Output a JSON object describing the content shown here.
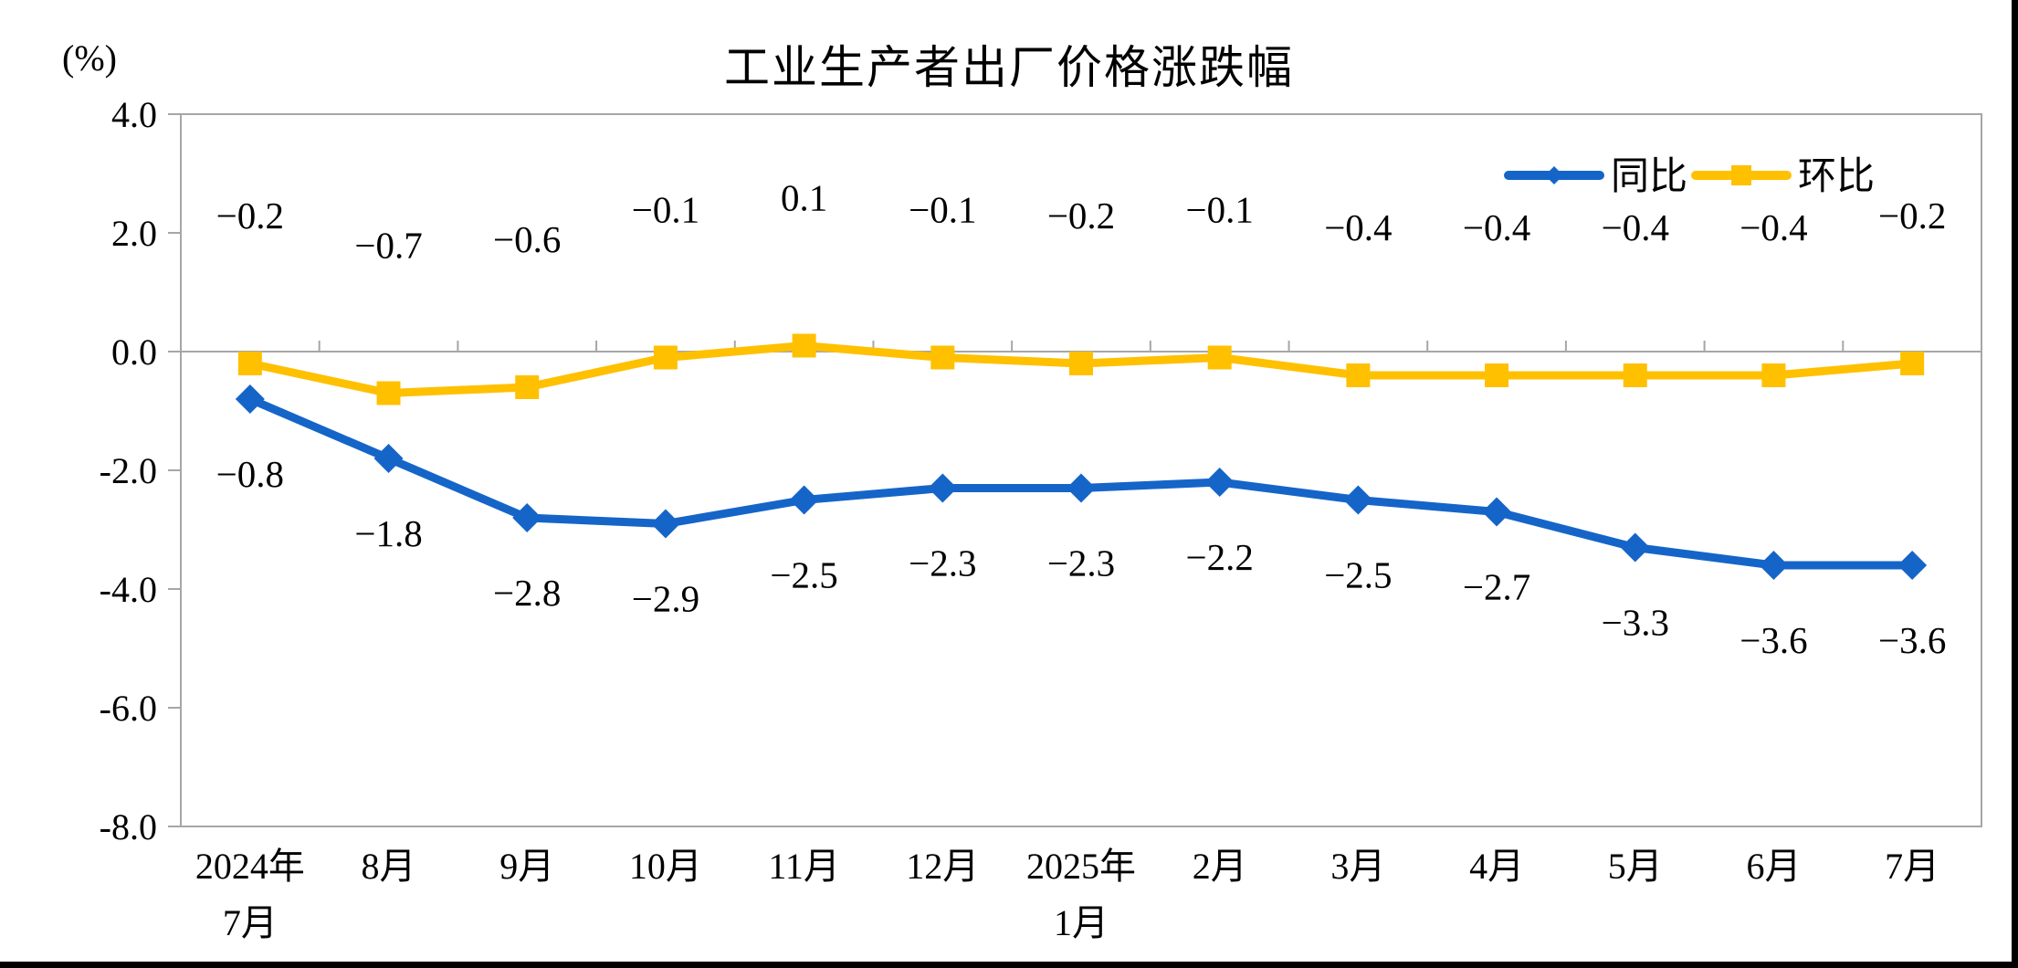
{
  "chart_data": {
    "type": "line",
    "title": "工业生产者出厂价格涨跌幅",
    "unit_label": "(%)",
    "categories": [
      [
        "2024年",
        "7月"
      ],
      [
        "8月"
      ],
      [
        "9月"
      ],
      [
        "10月"
      ],
      [
        "11月"
      ],
      [
        "12月"
      ],
      [
        "2025年",
        "1月"
      ],
      [
        "2月"
      ],
      [
        "3月"
      ],
      [
        "4月"
      ],
      [
        "5月"
      ],
      [
        "6月"
      ],
      [
        "7月"
      ]
    ],
    "series": [
      {
        "name": "同比",
        "marker": "diamond",
        "color": "#1565C8",
        "label_position": "below",
        "values": [
          -0.8,
          -1.8,
          -2.8,
          -2.9,
          -2.5,
          -2.3,
          -2.3,
          -2.2,
          -2.5,
          -2.7,
          -3.3,
          -3.6,
          -3.6
        ],
        "labels": [
          "−0.8",
          "−1.8",
          "−2.8",
          "−2.9",
          "−2.5",
          "−2.3",
          "−2.3",
          "−2.2",
          "−2.5",
          "−2.7",
          "−3.3",
          "−3.6",
          "−3.6"
        ]
      },
      {
        "name": "环比",
        "marker": "square",
        "color": "#FFC000",
        "label_position": "above",
        "values": [
          -0.2,
          -0.7,
          -0.6,
          -0.1,
          0.1,
          -0.1,
          -0.2,
          -0.1,
          -0.4,
          -0.4,
          -0.4,
          -0.4,
          -0.2
        ],
        "labels": [
          "−0.2",
          "−0.7",
          "−0.6",
          "−0.1",
          "0.1",
          "−0.1",
          "−0.2",
          "−0.1",
          "−0.4",
          "−0.4",
          "−0.4",
          "−0.4",
          "−0.2"
        ]
      }
    ],
    "y_axis": {
      "min": -8.0,
      "max": 4.0,
      "step": 2.0,
      "tick_labels": [
        "4.0",
        "2.0",
        "0.0",
        "-2.0",
        "-4.0",
        "-6.0",
        "-8.0"
      ]
    },
    "legend": {
      "position": "top-right-inside",
      "entries": [
        "同比",
        "环比"
      ]
    },
    "grid": "zero-line-only",
    "axis_color": "#A6A6A6",
    "text_color": "#000000",
    "background": "#FFFFFF"
  }
}
